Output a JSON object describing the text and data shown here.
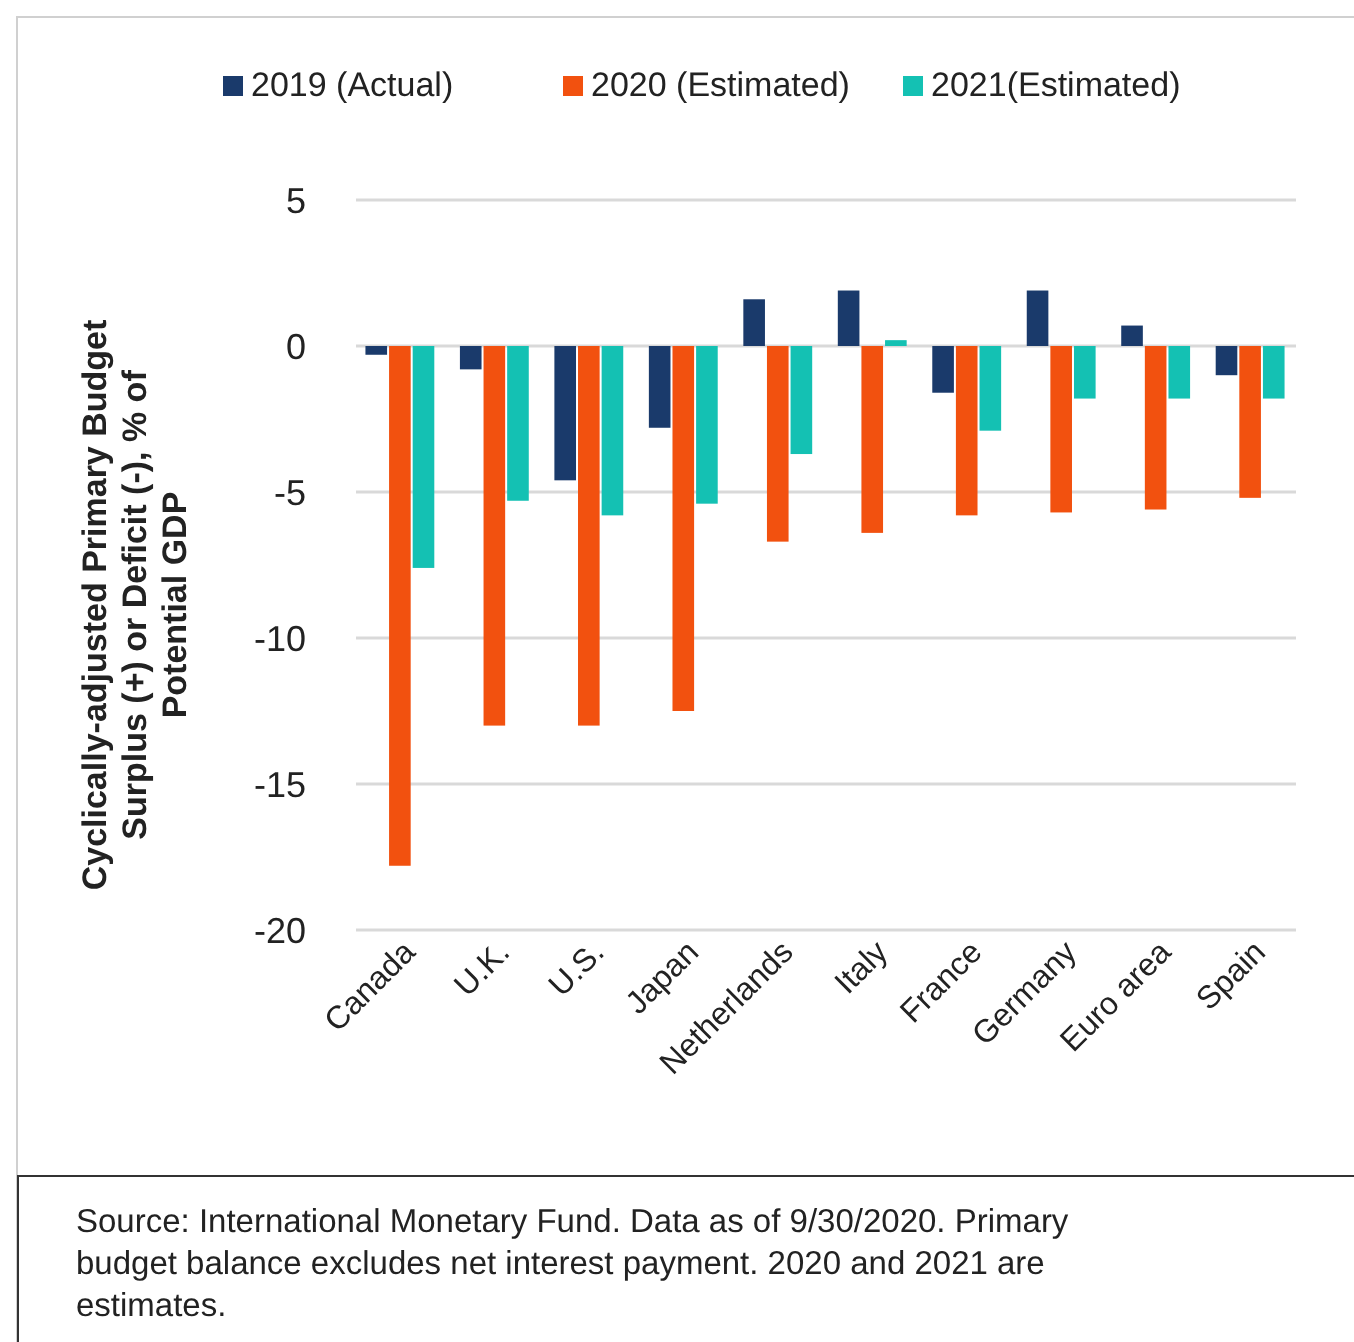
{
  "chart_data": {
    "type": "bar",
    "ylabel": "Cyclically-adjusted Primary Budget Surplus (+) or Deficit (-), % of Potential GDP",
    "categories": [
      "Canada",
      "U.K.",
      "U.S.",
      "Japan",
      "Netherlands",
      "Italy",
      "France",
      "Germany",
      "Euro area",
      "Spain"
    ],
    "series": [
      {
        "name": "2019 (Actual)",
        "color": "#1a3a6b",
        "values": [
          -0.3,
          -0.8,
          -4.6,
          -2.8,
          1.6,
          1.9,
          -1.6,
          1.9,
          0.7,
          -1.0
        ]
      },
      {
        "name": "2020 (Estimated)",
        "color": "#f2510f",
        "values": [
          -17.8,
          -13.0,
          -13.0,
          -12.5,
          -6.7,
          -6.4,
          -5.8,
          -5.7,
          -5.6,
          -5.2
        ]
      },
      {
        "name": "2021(Estimated)",
        "color": "#14c1b3",
        "values": [
          -7.6,
          -5.3,
          -5.8,
          -5.4,
          -3.7,
          0.2,
          -2.9,
          -1.8,
          -1.8,
          -1.8
        ]
      }
    ],
    "ylim": [
      -20,
      5
    ],
    "yticks": [
      -20,
      -15,
      -10,
      -5,
      0,
      5
    ],
    "grid": "y",
    "legend": "top",
    "annotations": [
      "Source: International Monetary Fund. Data as of 9/30/2020. Primary budget balance excludes net interest payment. 2020 and 2021 are estimates."
    ]
  }
}
